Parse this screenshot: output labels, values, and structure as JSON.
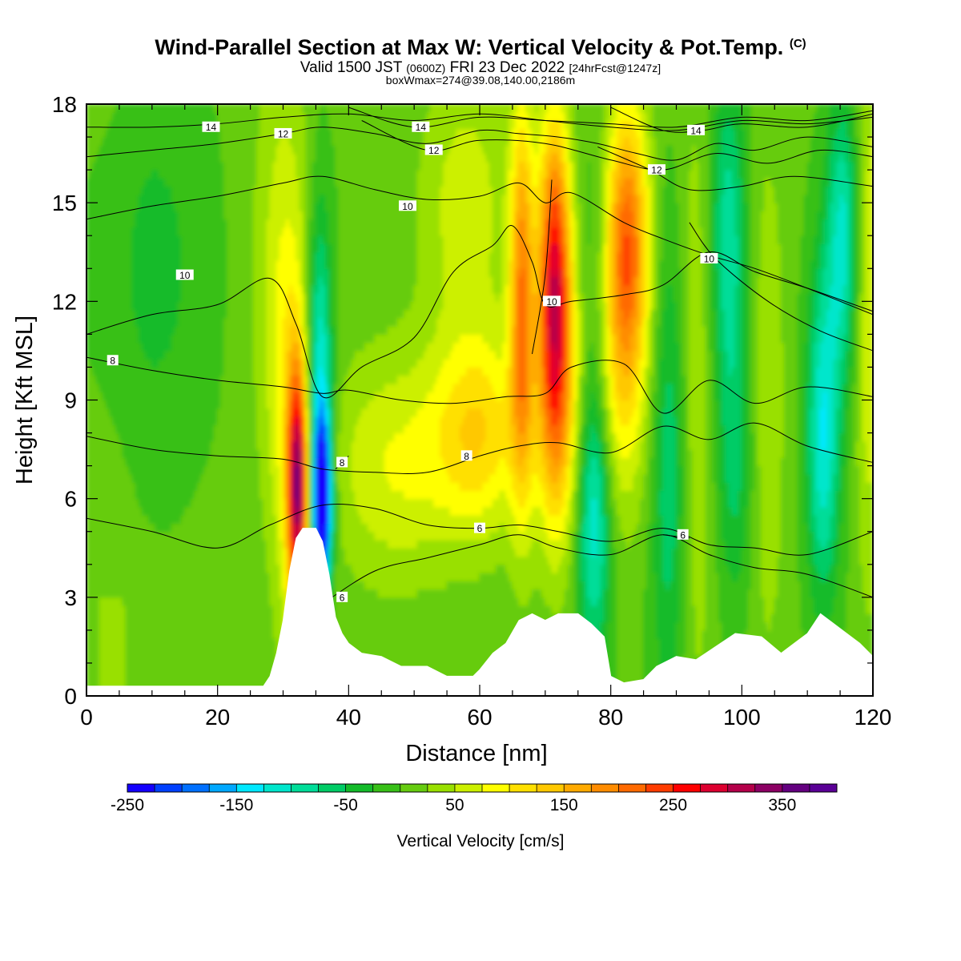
{
  "titles": {
    "main": "Wind-Parallel Section at Max W: Vertical Velocity & Pot.Temp.",
    "copyright": "(C)",
    "valid_prefix": "Valid 1500 JST",
    "valid_utc": "(0600Z)",
    "valid_date": "FRI 23 Dec 2022",
    "forecast": "[24hrFcst@1247z]",
    "boxwmax": "boxWmax=274@39.08,140.00,2186m"
  },
  "chart_data": {
    "type": "heatmap",
    "xlabel": "Distance [nm]",
    "ylabel": "Height [Kft MSL]",
    "xlim": [
      0,
      120
    ],
    "ylim": [
      0,
      18
    ],
    "xticks": [
      0,
      20,
      40,
      60,
      80,
      100,
      120
    ],
    "yticks": [
      0,
      3,
      6,
      9,
      12,
      15,
      18
    ],
    "colorbar": {
      "label": "Vertical Velocity [cm/s]",
      "min": -250,
      "max": 400,
      "step": 25,
      "ticks": [
        -250,
        -150,
        -50,
        50,
        150,
        250,
        350
      ],
      "colors": [
        "#1400ff",
        "#0040ff",
        "#0070ff",
        "#00a8ff",
        "#00e8ff",
        "#00e6cc",
        "#00dd99",
        "#00cc66",
        "#14bb2a",
        "#38c018",
        "#66cc10",
        "#99e000",
        "#ccf000",
        "#ffff00",
        "#ffe000",
        "#ffc800",
        "#ffaa00",
        "#ff8c00",
        "#ff6a00",
        "#ff3c00",
        "#ff0000",
        "#dd0030",
        "#b4004a",
        "#8c0064",
        "#640080",
        "#5a0096"
      ]
    },
    "terrain_kft": [
      [
        0,
        0.3
      ],
      [
        27,
        0.3
      ],
      [
        28,
        0.6
      ],
      [
        29,
        1.3
      ],
      [
        30,
        2.3
      ],
      [
        31,
        3.8
      ],
      [
        32,
        4.8
      ],
      [
        33,
        5.1
      ],
      [
        35,
        5.1
      ],
      [
        36,
        4.7
      ],
      [
        37,
        3.7
      ],
      [
        38,
        2.4
      ],
      [
        39,
        1.9
      ],
      [
        40,
        1.6
      ],
      [
        42,
        1.3
      ],
      [
        45,
        1.2
      ],
      [
        48,
        0.9
      ],
      [
        52,
        0.9
      ],
      [
        55,
        0.6
      ],
      [
        59,
        0.6
      ],
      [
        60,
        0.8
      ],
      [
        62,
        1.3
      ],
      [
        64,
        1.6
      ],
      [
        66,
        2.3
      ],
      [
        68,
        2.5
      ],
      [
        70,
        2.3
      ],
      [
        72,
        2.5
      ],
      [
        75,
        2.5
      ],
      [
        77,
        2.2
      ],
      [
        79,
        1.8
      ],
      [
        80,
        0.6
      ],
      [
        82,
        0.4
      ],
      [
        85,
        0.5
      ],
      [
        87,
        0.9
      ],
      [
        90,
        1.2
      ],
      [
        93,
        1.1
      ],
      [
        96,
        1.5
      ],
      [
        99,
        1.9
      ],
      [
        103,
        1.8
      ],
      [
        106,
        1.3
      ],
      [
        108,
        1.6
      ],
      [
        110,
        1.9
      ],
      [
        112,
        2.5
      ],
      [
        114,
        2.2
      ],
      [
        116,
        1.9
      ],
      [
        118,
        1.6
      ],
      [
        120,
        1.2
      ]
    ],
    "theta_contours": [
      {
        "label": "6",
        "points": [
          [
            0,
            5.4
          ],
          [
            10,
            5.0
          ],
          [
            20,
            4.5
          ],
          [
            28,
            5.2
          ],
          [
            36,
            5.8
          ],
          [
            44,
            5.7
          ],
          [
            52,
            5.2
          ],
          [
            60,
            5.1
          ],
          [
            66,
            5.2
          ],
          [
            72,
            5.0
          ],
          [
            80,
            4.7
          ],
          [
            88,
            5.1
          ],
          [
            95,
            4.6
          ],
          [
            102,
            4.5
          ],
          [
            110,
            4.3
          ],
          [
            120,
            5.0
          ]
        ],
        "label_at": [
          60,
          5.1
        ]
      },
      {
        "label": "6",
        "points": [
          [
            36,
            2.8
          ],
          [
            44,
            3.8
          ],
          [
            52,
            4.2
          ],
          [
            60,
            4.6
          ],
          [
            66,
            4.9
          ],
          [
            72,
            4.5
          ],
          [
            80,
            4.3
          ],
          [
            88,
            4.9
          ],
          [
            95,
            4.3
          ],
          [
            102,
            3.9
          ],
          [
            110,
            3.7
          ],
          [
            120,
            3.0
          ]
        ],
        "label_at": [
          39,
          3.0
        ]
      },
      {
        "label": "8",
        "points": [
          [
            0,
            7.9
          ],
          [
            10,
            7.5
          ],
          [
            20,
            7.3
          ],
          [
            30,
            7.2
          ],
          [
            36,
            6.9
          ],
          [
            44,
            6.8
          ],
          [
            52,
            6.8
          ],
          [
            60,
            7.3
          ],
          [
            66,
            7.6
          ],
          [
            72,
            7.7
          ],
          [
            80,
            7.4
          ],
          [
            88,
            8.2
          ],
          [
            95,
            7.8
          ],
          [
            102,
            8.3
          ],
          [
            110,
            7.6
          ],
          [
            120,
            7.1
          ]
        ],
        "label_at": [
          58,
          7.3
        ]
      },
      {
        "label": "8",
        "points": [
          [
            0,
            10.3
          ],
          [
            10,
            9.9
          ],
          [
            20,
            9.6
          ],
          [
            30,
            9.4
          ],
          [
            36,
            9.2
          ],
          [
            40,
            9.3
          ],
          [
            48,
            9.0
          ],
          [
            56,
            8.9
          ],
          [
            64,
            9.1
          ],
          [
            70,
            9.2
          ],
          [
            74,
            10.0
          ],
          [
            82,
            10.1
          ],
          [
            88,
            8.6
          ],
          [
            95,
            9.6
          ],
          [
            102,
            8.9
          ],
          [
            110,
            9.4
          ],
          [
            120,
            9.1
          ]
        ],
        "label_at": [
          4,
          10.2
        ]
      },
      {
        "label": "10",
        "points": [
          [
            0,
            11.0
          ],
          [
            10,
            11.6
          ],
          [
            20,
            11.9
          ],
          [
            28,
            12.7
          ],
          [
            32,
            11.3
          ],
          [
            36,
            9.1
          ],
          [
            42,
            10.0
          ],
          [
            50,
            10.9
          ],
          [
            56,
            12.9
          ],
          [
            62,
            13.7
          ],
          [
            65,
            14.3
          ],
          [
            68,
            13.2
          ],
          [
            70,
            11.9
          ],
          [
            74,
            12.0
          ],
          [
            82,
            12.2
          ],
          [
            88,
            12.5
          ],
          [
            95,
            13.5
          ],
          [
            102,
            12.9
          ],
          [
            110,
            12.4
          ],
          [
            120,
            11.7
          ]
        ],
        "label_at": [
          15,
          12.8
        ]
      },
      {
        "label": "10",
        "points": [
          [
            0,
            14.5
          ],
          [
            10,
            14.9
          ],
          [
            20,
            15.2
          ],
          [
            30,
            15.6
          ],
          [
            36,
            15.8
          ],
          [
            44,
            15.4
          ],
          [
            52,
            15.1
          ],
          [
            60,
            15.2
          ],
          [
            66,
            15.6
          ],
          [
            70,
            15.0
          ],
          [
            74,
            15.3
          ],
          [
            82,
            14.4
          ],
          [
            88,
            13.9
          ],
          [
            95,
            13.4
          ],
          [
            102,
            13.0
          ],
          [
            110,
            12.4
          ],
          [
            120,
            11.6
          ]
        ],
        "label_at": [
          49,
          14.9
        ]
      },
      {
        "label": "12",
        "points": [
          [
            0,
            16.4
          ],
          [
            10,
            16.6
          ],
          [
            20,
            16.8
          ],
          [
            30,
            17.1
          ],
          [
            36,
            17.3
          ],
          [
            44,
            17.1
          ],
          [
            52,
            16.8
          ],
          [
            60,
            17.2
          ],
          [
            66,
            17.1
          ],
          [
            72,
            17.0
          ],
          [
            78,
            16.8
          ],
          [
            84,
            16.5
          ],
          [
            90,
            16.3
          ],
          [
            96,
            16.8
          ],
          [
            102,
            16.6
          ],
          [
            110,
            17.0
          ],
          [
            120,
            16.7
          ]
        ],
        "label_at": [
          30,
          17.1
        ]
      },
      {
        "label": "12",
        "points": [
          [
            42,
            17.5
          ],
          [
            52,
            16.6
          ],
          [
            60,
            16.9
          ],
          [
            70,
            16.8
          ],
          [
            80,
            16.3
          ],
          [
            88,
            16.0
          ],
          [
            96,
            16.5
          ],
          [
            104,
            16.2
          ],
          [
            112,
            16.6
          ],
          [
            120,
            16.4
          ]
        ],
        "label_at": [
          53,
          16.6
        ]
      },
      {
        "label": "12",
        "points": [
          [
            78,
            16.7
          ],
          [
            86,
            16.0
          ],
          [
            92,
            15.4
          ],
          [
            100,
            15.5
          ],
          [
            108,
            15.8
          ],
          [
            120,
            15.5
          ]
        ],
        "label_at": [
          87,
          16.0
        ]
      },
      {
        "label": "14",
        "points": [
          [
            0,
            17.3
          ],
          [
            10,
            17.3
          ],
          [
            20,
            17.4
          ],
          [
            30,
            17.6
          ],
          [
            40,
            17.7
          ],
          [
            50,
            17.5
          ],
          [
            60,
            17.7
          ],
          [
            70,
            17.5
          ],
          [
            80,
            17.3
          ],
          [
            90,
            17.2
          ],
          [
            100,
            17.5
          ],
          [
            110,
            17.4
          ],
          [
            120,
            17.6
          ]
        ],
        "label_at": [
          19,
          17.3
        ]
      },
      {
        "label": "14",
        "points": [
          [
            40,
            17.9
          ],
          [
            50,
            17.3
          ],
          [
            60,
            17.6
          ],
          [
            70,
            17.5
          ],
          [
            80,
            17.4
          ],
          [
            90,
            17.3
          ],
          [
            100,
            17.6
          ],
          [
            110,
            17.5
          ],
          [
            120,
            17.8
          ]
        ],
        "label_at": [
          51,
          17.3
        ]
      },
      {
        "label": "14",
        "points": [
          [
            80,
            17.9
          ],
          [
            88,
            17.2
          ],
          [
            94,
            17.2
          ],
          [
            100,
            17.4
          ],
          [
            110,
            17.3
          ],
          [
            120,
            17.7
          ]
        ],
        "label_at": [
          93,
          17.2
        ]
      },
      {
        "label": "10",
        "points": [
          [
            68,
            10.4
          ],
          [
            70,
            12.8
          ],
          [
            71,
            15.7
          ]
        ],
        "label_at": [
          71,
          12.0
        ]
      },
      {
        "label": "10",
        "points": [
          [
            92,
            14.4
          ],
          [
            96,
            13.3
          ],
          [
            104,
            12.0
          ],
          [
            112,
            11.1
          ],
          [
            120,
            10.5
          ]
        ],
        "label_at": [
          95,
          13.3
        ]
      },
      {
        "label": "8",
        "points": [
          [
            38,
            6.9
          ],
          [
            40,
            7.3
          ]
        ],
        "label_at": [
          39,
          7.1
        ]
      },
      {
        "label": "6",
        "points": [
          [
            88,
            4.9
          ],
          [
            92,
            4.8
          ]
        ],
        "label_at": [
          91,
          4.9
        ]
      }
    ]
  }
}
